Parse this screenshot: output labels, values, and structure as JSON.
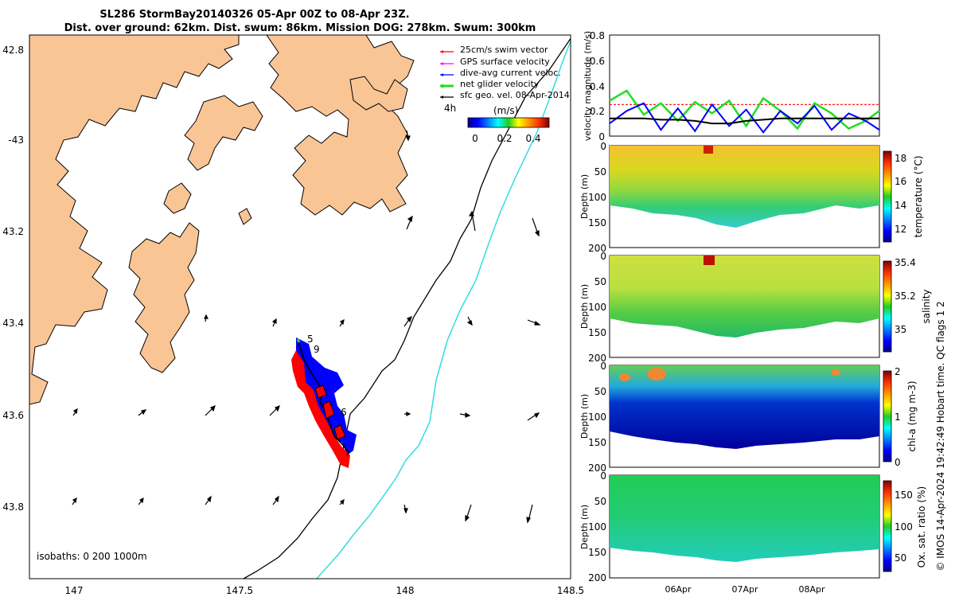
{
  "title": {
    "line1": "SL286 StormBay20140326 05-Apr 00Z to 08-Apr 23Z.",
    "line2": "Dist. over ground: 62km. Dist. swum: 86km. Mission DOG: 278km. Swum: 300km"
  },
  "colors": {
    "land": "#f9c595",
    "track_red": "#ff0000",
    "track_blue": "#0000ff",
    "isobath_200": "#000000",
    "isobath_1000": "#33dddd",
    "net_velocity": "#22dd22"
  },
  "map": {
    "lon_ticks": [
      "147",
      "147.5",
      "148",
      "148.5"
    ],
    "lat_ticks": [
      "42.8",
      "-43",
      "43.2",
      "43.4",
      "43.6",
      "43.8"
    ],
    "isobaths_label": "isobaths: 0   200  1000m",
    "time_labels": [
      "5",
      "9",
      "6"
    ],
    "arrow_hours": "4h",
    "legend": [
      {
        "label": "25cm/s swim vector",
        "color": "#ff0000"
      },
      {
        "label": "GPS surface velocity",
        "color": "#ff00ff"
      },
      {
        "label": "dive-avg current veloc.",
        "color": "#0000ff"
      },
      {
        "label": "net glider velocity",
        "color": "#22dd22"
      },
      {
        "label": "sfc geo. vel. 08-Apr-2014",
        "color": "#000000"
      }
    ],
    "colorbar": {
      "label": "(m/s)",
      "ticks": [
        "0",
        "0.2",
        "0.4"
      ],
      "range": [
        0,
        0.5
      ]
    }
  },
  "chart_data": [
    {
      "type": "line",
      "title": "",
      "xlabel": "",
      "ylabel": "velocity magnitude (m/s)",
      "ylim": [
        0,
        0.8
      ],
      "yticks": [
        "0",
        "0.2",
        "0.4",
        "0.6",
        "0.8"
      ],
      "x_days": [
        5.0,
        5.25,
        5.5,
        5.75,
        6.0,
        6.25,
        6.5,
        6.75,
        7.0,
        7.25,
        7.5,
        7.75,
        8.0,
        8.25,
        8.5,
        8.75,
        8.95
      ],
      "series": [
        {
          "name": "25cm/s swim vector",
          "color": "#ff0000",
          "values": [
            0.25,
            0.25,
            0.25,
            0.25,
            0.25,
            0.25,
            0.25,
            0.25,
            0.25,
            0.25,
            0.25,
            0.25,
            0.25,
            0.25,
            0.25,
            0.25,
            0.25
          ]
        },
        {
          "name": "net glider velocity",
          "color": "#22dd22",
          "values": [
            0.28,
            0.36,
            0.17,
            0.26,
            0.12,
            0.27,
            0.18,
            0.28,
            0.08,
            0.3,
            0.2,
            0.06,
            0.26,
            0.18,
            0.06,
            0.12,
            0.2
          ]
        },
        {
          "name": "dive-avg current veloc.",
          "color": "#0000ff",
          "values": [
            0.1,
            0.2,
            0.26,
            0.05,
            0.22,
            0.04,
            0.25,
            0.08,
            0.21,
            0.03,
            0.2,
            0.1,
            0.24,
            0.05,
            0.18,
            0.12,
            0.05
          ]
        },
        {
          "name": "surface geostrophic",
          "color": "#000000",
          "values": [
            0.14,
            0.14,
            0.14,
            0.13,
            0.13,
            0.12,
            0.1,
            0.1,
            0.12,
            0.13,
            0.14,
            0.14,
            0.14,
            0.14,
            0.14,
            0.14,
            0.14
          ]
        }
      ]
    },
    {
      "type": "heatmap",
      "ylabel": "Depth (m)",
      "yticks": [
        "0",
        "50",
        "100",
        "150",
        "200"
      ],
      "ylim": [
        200,
        0
      ],
      "colorbar_label": "temperature (°C)",
      "colorbar_ticks": [
        "18",
        "16",
        "14",
        "12"
      ],
      "crange": [
        11,
        18.5
      ]
    },
    {
      "type": "heatmap",
      "ylabel": "Depth (m)",
      "yticks": [
        "0",
        "50",
        "100",
        "150",
        "200"
      ],
      "ylim": [
        200,
        0
      ],
      "colorbar_label": "salinity",
      "colorbar_ticks": [
        "35.4",
        "35.2",
        "35"
      ],
      "crange": [
        34.85,
        35.42
      ]
    },
    {
      "type": "heatmap",
      "ylabel": "Depth (m)",
      "yticks": [
        "0",
        "50",
        "100",
        "150",
        "200"
      ],
      "ylim": [
        200,
        0
      ],
      "colorbar_label": "chl-a (mg m-3)",
      "colorbar_ticks": [
        "2",
        "1",
        "0"
      ],
      "crange": [
        0,
        2
      ]
    },
    {
      "type": "heatmap",
      "ylabel": "Depth (m)",
      "yticks": [
        "0",
        "50",
        "100",
        "150",
        "200"
      ],
      "ylim": [
        200,
        0
      ],
      "colorbar_label": "Ox. sat. ratio (%)",
      "colorbar_ticks": [
        "150",
        "100",
        "50"
      ],
      "crange": [
        25,
        175
      ],
      "xticks": [
        "06Apr",
        "07Apr",
        "08Apr"
      ]
    }
  ],
  "side_note": "© IMOS 14-Apr-2024 19:42:49 Hobart time. QC flags 1  2"
}
